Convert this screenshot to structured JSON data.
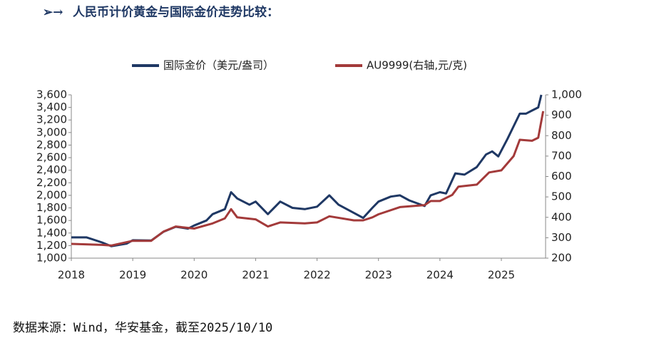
{
  "chart_data": {
    "type": "line",
    "title": "人民币计价黄金与国际金价走势比较：",
    "source": "数据来源：Wind，华安基金，截至2025/10/10",
    "xlim": [
      2018,
      2025.72
    ],
    "xticks": [
      2018,
      2019,
      2020,
      2021,
      2022,
      2023,
      2024,
      2025
    ],
    "ylim": [
      1000,
      3600
    ],
    "yticks": [
      {
        "value": 1000,
        "label": "1,000"
      },
      {
        "value": 1200,
        "label": "1,200"
      },
      {
        "value": 1400,
        "label": "1,400"
      },
      {
        "value": 1600,
        "label": "1,600"
      },
      {
        "value": 1800,
        "label": "1,800"
      },
      {
        "value": 2000,
        "label": "2,000"
      },
      {
        "value": 2200,
        "label": "2,200"
      },
      {
        "value": 2400,
        "label": "2,400"
      },
      {
        "value": 2600,
        "label": "2,600"
      },
      {
        "value": 2800,
        "label": "2,800"
      },
      {
        "value": 3000,
        "label": "3,000"
      },
      {
        "value": 3200,
        "label": "3,200"
      },
      {
        "value": 3400,
        "label": "3,400"
      },
      {
        "value": 3600,
        "label": "3,600"
      }
    ],
    "y2lim": [
      200,
      1000
    ],
    "y2ticks": [
      200,
      300,
      400,
      500,
      600,
      700,
      800,
      900,
      {
        "value": 1000,
        "label": "1,000"
      }
    ],
    "series": [
      {
        "name": "国际金价（美元/盎司）",
        "color": "#1f3864",
        "x": [
          2018.0,
          2018.25,
          2018.5,
          2018.65,
          2018.9,
          2019.0,
          2019.3,
          2019.5,
          2019.7,
          2019.9,
          2020.0,
          2020.2,
          2020.3,
          2020.5,
          2020.6,
          2020.7,
          2020.9,
          2021.0,
          2021.2,
          2021.4,
          2021.6,
          2021.8,
          2022.0,
          2022.2,
          2022.35,
          2022.6,
          2022.75,
          2022.9,
          2023.0,
          2023.2,
          2023.35,
          2023.5,
          2023.75,
          2023.85,
          2024.0,
          2024.1,
          2024.25,
          2024.4,
          2024.6,
          2024.75,
          2024.85,
          2024.95,
          2025.1,
          2025.2,
          2025.3,
          2025.4,
          2025.5,
          2025.6,
          2025.65
        ],
        "values": [
          1330,
          1330,
          1250,
          1190,
          1230,
          1285,
          1280,
          1420,
          1500,
          1470,
          1520,
          1600,
          1700,
          1780,
          2050,
          1950,
          1850,
          1900,
          1700,
          1900,
          1800,
          1780,
          1820,
          2000,
          1850,
          1720,
          1640,
          1800,
          1900,
          1980,
          2000,
          1920,
          1830,
          2000,
          2050,
          2030,
          2350,
          2330,
          2450,
          2650,
          2700,
          2620,
          2900,
          3100,
          3300,
          3300,
          3350,
          3400,
          3600
        ]
      },
      {
        "name": "AU9999(右轴,元/克)",
        "color": "#a33a3a",
        "axis": "y2",
        "x": [
          2018.0,
          2018.5,
          2018.65,
          2019.0,
          2019.3,
          2019.5,
          2019.7,
          2020.0,
          2020.3,
          2020.5,
          2020.6,
          2020.7,
          2021.0,
          2021.2,
          2021.4,
          2021.8,
          2022.0,
          2022.2,
          2022.6,
          2022.75,
          2022.9,
          2023.0,
          2023.35,
          2023.75,
          2023.85,
          2024.0,
          2024.2,
          2024.3,
          2024.6,
          2024.8,
          2025.0,
          2025.2,
          2025.3,
          2025.5,
          2025.6,
          2025.68
        ],
        "values": [
          270,
          265,
          262,
          285,
          285,
          330,
          355,
          345,
          370,
          395,
          440,
          400,
          390,
          355,
          375,
          370,
          375,
          405,
          385,
          385,
          400,
          415,
          450,
          460,
          480,
          480,
          510,
          550,
          560,
          620,
          630,
          700,
          780,
          775,
          790,
          920
        ]
      }
    ]
  }
}
